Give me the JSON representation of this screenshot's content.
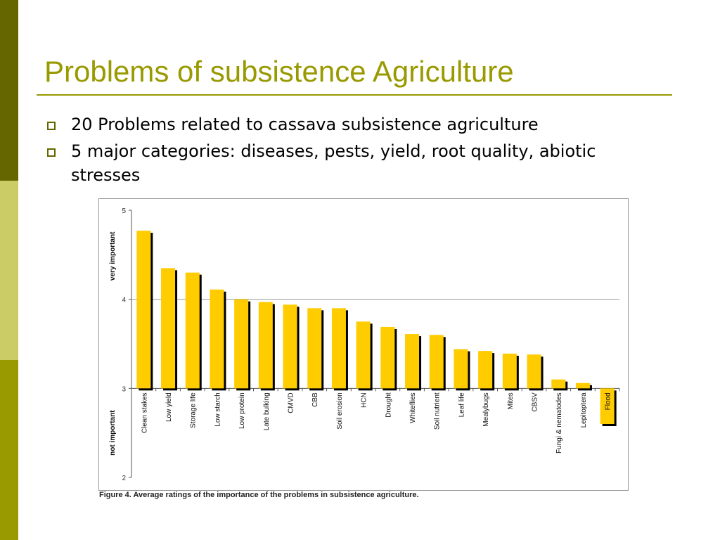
{
  "slide": {
    "title": "Problems of subsistence Agriculture",
    "bullets": [
      "20 Problems related to cassava subsistence agriculture",
      "5 major categories: diseases, pests, yield, root quality, abiotic stresses"
    ],
    "figure_caption": "Figure 4. Average ratings of the importance of the problems in subsistence agriculture.",
    "colors": {
      "title": "#999900",
      "rule": "#999900",
      "band_top": "#666600",
      "band_middle": "#cccc66",
      "band_bottom": "#999900",
      "bar_fill": "#ffcc00",
      "bar_shadow": "#000000"
    }
  },
  "chart_data": {
    "type": "bar",
    "title": "",
    "xlabel": "",
    "ylabel_top": "very important",
    "ylabel_bottom": "not important",
    "ylim": [
      2,
      5
    ],
    "baseline": 3,
    "yticks": [
      2,
      3,
      4,
      5
    ],
    "grid": "horizontal line at 4",
    "categories": [
      "Clean stakes",
      "Low yield",
      "Storage life",
      "Low starch",
      "Low protein",
      "Late bulking",
      "CMVD",
      "CBB",
      "Soil erosion",
      "HCN",
      "Drought",
      "Whiteflies",
      "Soil nutrient",
      "Leaf life",
      "Mealybugs",
      "Mites",
      "CBSV",
      "Fungi & nematodes",
      "Lepitoptera",
      "Flood"
    ],
    "values": [
      4.77,
      4.35,
      4.3,
      4.11,
      4.0,
      3.97,
      3.94,
      3.9,
      3.9,
      3.75,
      3.69,
      3.61,
      3.6,
      3.44,
      3.42,
      3.39,
      3.38,
      3.1,
      3.06,
      2.6
    ]
  }
}
